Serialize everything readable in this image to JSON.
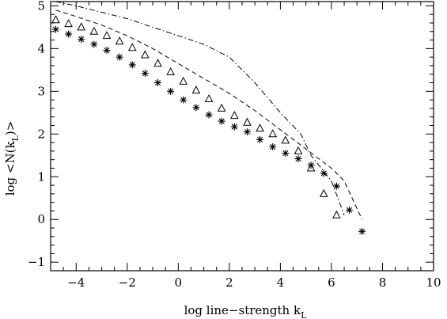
{
  "chart_data": {
    "type": "scatter",
    "xlabel": "log line−strength k",
    "xlabel_sub": "L",
    "ylabel": "log <N(k",
    "ylabel_sub": "L",
    "ylabel_end": ")>",
    "xlim": [
      -5,
      10
    ],
    "ylim": [
      -1.2,
      5.1
    ],
    "x_ticks": [
      -4,
      -2,
      0,
      2,
      4,
      6,
      8,
      10
    ],
    "x_tick_labels": [
      "−4",
      "−2",
      "0",
      "2",
      "4",
      "6",
      "8",
      "10"
    ],
    "y_ticks": [
      -1,
      0,
      1,
      2,
      3,
      4,
      5
    ],
    "y_tick_labels": [
      "−1",
      "0",
      "1",
      "2",
      "3",
      "4",
      "5"
    ],
    "grid": false,
    "series": [
      {
        "style": "asterisk",
        "x": [
          -4.8,
          -4.3,
          -3.8,
          -3.3,
          -2.8,
          -2.3,
          -1.8,
          -1.3,
          -0.8,
          -0.3,
          0.2,
          0.7,
          1.2,
          1.7,
          2.2,
          2.7,
          3.2,
          3.7,
          4.2,
          4.7,
          5.2,
          5.7,
          6.2,
          6.7,
          7.2
        ],
        "y": [
          4.45,
          4.34,
          4.22,
          4.1,
          3.96,
          3.8,
          3.62,
          3.42,
          3.2,
          3.0,
          2.8,
          2.62,
          2.45,
          2.3,
          2.17,
          2.05,
          1.87,
          1.7,
          1.55,
          1.42,
          1.27,
          1.08,
          0.78,
          0.22,
          -0.28
        ]
      },
      {
        "style": "triangle",
        "x": [
          -4.8,
          -4.3,
          -3.8,
          -3.3,
          -2.8,
          -2.3,
          -1.8,
          -1.3,
          -0.8,
          -0.3,
          0.2,
          0.7,
          1.2,
          1.7,
          2.2,
          2.7,
          3.2,
          3.7,
          4.2,
          4.7,
          5.2,
          5.7,
          6.2
        ],
        "y": [
          4.67,
          4.58,
          4.5,
          4.4,
          4.3,
          4.17,
          4.02,
          3.85,
          3.65,
          3.45,
          3.23,
          3.02,
          2.82,
          2.6,
          2.43,
          2.27,
          2.13,
          2.0,
          1.85,
          1.6,
          1.2,
          0.6,
          0.1
        ]
      },
      {
        "style": "dashed",
        "x": [
          -4.8,
          -4.0,
          -3.0,
          -2.0,
          -1.0,
          0.0,
          1.0,
          2.0,
          3.0,
          4.0,
          5.0,
          6.0,
          6.5,
          7.2
        ],
        "y": [
          4.9,
          4.75,
          4.55,
          4.3,
          4.0,
          3.65,
          3.3,
          2.95,
          2.55,
          2.1,
          1.65,
          1.2,
          0.9,
          0.0
        ]
      },
      {
        "style": "dashdot",
        "x": [
          -4.8,
          -4.0,
          -3.0,
          -2.0,
          -1.0,
          0.0,
          1.0,
          2.0,
          3.0,
          4.0,
          4.8,
          5.2,
          6.0,
          6.5
        ],
        "y": [
          5.1,
          5.0,
          4.85,
          4.7,
          4.5,
          4.3,
          4.1,
          3.8,
          3.2,
          2.5,
          2.0,
          1.5,
          0.9,
          0.1
        ]
      }
    ]
  }
}
